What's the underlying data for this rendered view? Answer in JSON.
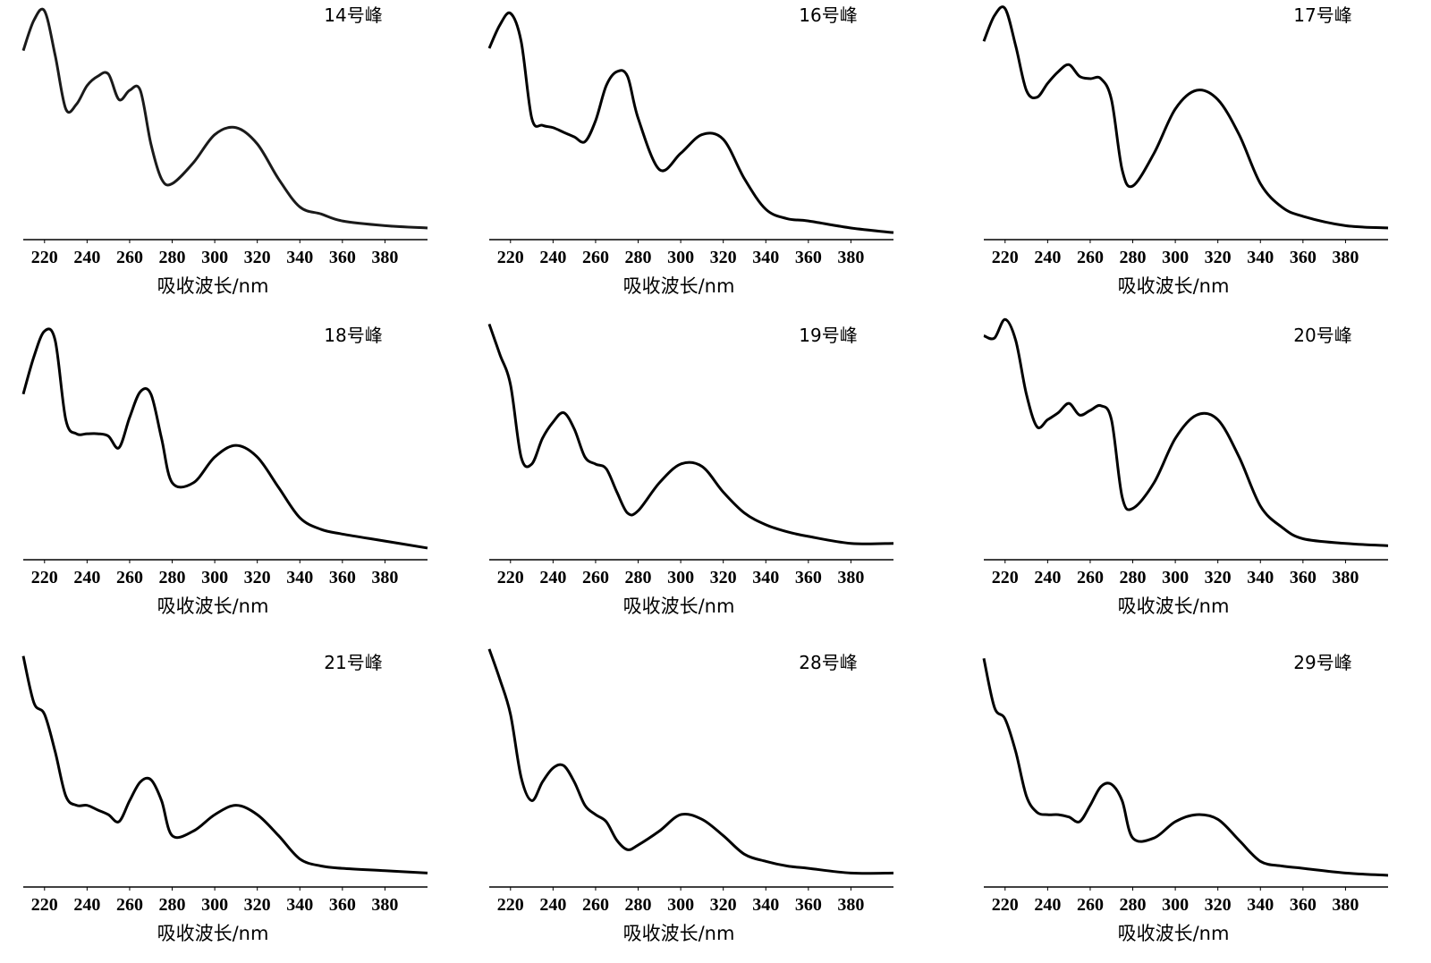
{
  "chart_data": [
    {
      "type": "line",
      "title": "14号峰",
      "xlabel": "吸收波长/nm",
      "color": "#1a1a1a",
      "xlim": [
        210,
        400
      ],
      "ylim": [
        0,
        105
      ],
      "xticks": [
        220,
        240,
        260,
        280,
        300,
        320,
        340,
        360,
        380
      ],
      "x": [
        210,
        215,
        220,
        225,
        230,
        235,
        240,
        245,
        250,
        255,
        260,
        265,
        270,
        275,
        280,
        290,
        300,
        310,
        320,
        330,
        340,
        350,
        360,
        380,
        400
      ],
      "values": [
        81,
        94,
        98,
        79,
        56,
        58,
        66,
        70,
        71,
        60,
        64,
        64,
        41,
        26,
        24,
        33,
        45,
        48,
        41,
        26,
        14,
        11,
        8,
        6,
        5
      ]
    },
    {
      "type": "line",
      "title": "16号峰",
      "xlabel": "吸收波长/nm",
      "color": "#000000",
      "xlim": [
        210,
        400
      ],
      "ylim": [
        0,
        105
      ],
      "xticks": [
        220,
        240,
        260,
        280,
        300,
        320,
        340,
        360,
        380
      ],
      "x": [
        210,
        215,
        220,
        225,
        230,
        235,
        240,
        245,
        250,
        255,
        260,
        265,
        270,
        275,
        280,
        290,
        300,
        310,
        320,
        330,
        340,
        350,
        360,
        380,
        400
      ],
      "values": [
        82,
        92,
        97,
        85,
        52,
        49,
        48,
        46,
        44,
        42,
        51,
        66,
        72,
        70,
        52,
        30,
        37,
        45,
        43,
        26,
        13,
        9,
        8,
        5,
        3
      ]
    },
    {
      "type": "line",
      "title": "17号峰",
      "xlabel": "吸收波长/nm",
      "color": "#000000",
      "xlim": [
        210,
        400
      ],
      "ylim": [
        0,
        105
      ],
      "xticks": [
        220,
        240,
        260,
        280,
        300,
        320,
        340,
        360,
        380
      ],
      "x": [
        210,
        215,
        220,
        225,
        230,
        235,
        240,
        245,
        250,
        255,
        260,
        265,
        270,
        275,
        280,
        290,
        300,
        310,
        320,
        330,
        340,
        350,
        360,
        380,
        400
      ],
      "values": [
        85,
        96,
        99,
        83,
        64,
        61,
        67,
        72,
        75,
        70,
        69,
        69,
        60,
        30,
        23,
        37,
        56,
        64,
        60,
        45,
        24,
        14,
        10,
        6,
        5
      ]
    },
    {
      "type": "line",
      "title": "18号峰",
      "xlabel": "吸收波长/nm",
      "color": "#000000",
      "xlim": [
        210,
        400
      ],
      "ylim": [
        0,
        105
      ],
      "xticks": [
        220,
        240,
        260,
        280,
        300,
        320,
        340,
        360,
        380
      ],
      "x": [
        210,
        215,
        220,
        225,
        230,
        235,
        240,
        245,
        250,
        255,
        260,
        265,
        270,
        275,
        280,
        290,
        300,
        310,
        320,
        330,
        340,
        350,
        360,
        380,
        400
      ],
      "values": [
        71,
        87,
        98,
        94,
        60,
        54,
        54,
        54,
        53,
        48,
        61,
        72,
        71,
        52,
        33,
        33,
        44,
        49,
        44,
        31,
        18,
        13,
        11,
        8,
        5
      ]
    },
    {
      "type": "line",
      "title": "19号峰",
      "xlabel": "吸收波长/nm",
      "color": "#000000",
      "xlim": [
        210,
        400
      ],
      "ylim": [
        0,
        105
      ],
      "xticks": [
        220,
        240,
        260,
        280,
        300,
        320,
        340,
        360,
        380
      ],
      "x": [
        210,
        215,
        220,
        225,
        230,
        235,
        240,
        245,
        250,
        255,
        260,
        265,
        270,
        275,
        280,
        290,
        300,
        310,
        320,
        330,
        340,
        350,
        360,
        380,
        400
      ],
      "values": [
        101,
        88,
        75,
        44,
        41,
        52,
        59,
        63,
        56,
        44,
        41,
        39,
        29,
        20,
        21,
        33,
        41,
        40,
        29,
        20,
        15,
        12,
        10,
        7,
        7
      ]
    },
    {
      "type": "line",
      "title": "20号峰",
      "xlabel": "吸收波长/nm",
      "color": "#000000",
      "xlim": [
        210,
        400
      ],
      "ylim": [
        0,
        105
      ],
      "xticks": [
        220,
        240,
        260,
        280,
        300,
        320,
        340,
        360,
        380
      ],
      "x": [
        210,
        215,
        220,
        225,
        230,
        235,
        240,
        245,
        250,
        255,
        260,
        265,
        270,
        275,
        280,
        290,
        300,
        310,
        320,
        330,
        340,
        350,
        360,
        380,
        400
      ],
      "values": [
        96,
        95,
        103,
        94,
        71,
        57,
        60,
        63,
        67,
        62,
        64,
        66,
        60,
        27,
        22,
        33,
        52,
        62,
        60,
        44,
        23,
        14,
        9,
        7,
        6
      ]
    },
    {
      "type": "line",
      "title": "21号峰",
      "xlabel": "吸收波长/nm",
      "color": "#000000",
      "xlim": [
        210,
        400
      ],
      "ylim": [
        0,
        105
      ],
      "xticks": [
        220,
        240,
        260,
        280,
        300,
        320,
        340,
        360,
        380
      ],
      "x": [
        210,
        215,
        220,
        225,
        230,
        235,
        240,
        245,
        250,
        255,
        260,
        265,
        270,
        275,
        280,
        290,
        300,
        310,
        320,
        330,
        340,
        350,
        360,
        380,
        400
      ],
      "values": [
        99,
        79,
        74,
        58,
        39,
        35,
        35,
        33,
        31,
        28,
        37,
        45,
        46,
        37,
        22,
        24,
        31,
        35,
        31,
        22,
        12,
        9,
        8,
        7,
        6
      ]
    },
    {
      "type": "line",
      "title": "28号峰",
      "xlabel": "吸收波长/nm",
      "color": "#000000",
      "xlim": [
        210,
        400
      ],
      "ylim": [
        0,
        105
      ],
      "xticks": [
        220,
        240,
        260,
        280,
        300,
        320,
        340,
        360,
        380
      ],
      "x": [
        210,
        215,
        220,
        225,
        230,
        235,
        240,
        245,
        250,
        255,
        260,
        265,
        270,
        275,
        280,
        290,
        300,
        310,
        320,
        330,
        340,
        350,
        360,
        380,
        400
      ],
      "values": [
        102,
        89,
        74,
        47,
        37,
        45,
        51,
        52,
        45,
        35,
        31,
        28,
        20,
        16,
        18,
        24,
        31,
        29,
        22,
        14,
        11,
        9,
        8,
        6,
        6
      ]
    },
    {
      "type": "line",
      "title": "29号峰",
      "xlabel": "吸收波长/nm",
      "color": "#000000",
      "xlim": [
        210,
        400
      ],
      "ylim": [
        0,
        105
      ],
      "xticks": [
        220,
        240,
        260,
        280,
        300,
        320,
        340,
        360,
        380
      ],
      "x": [
        210,
        215,
        220,
        225,
        230,
        235,
        240,
        245,
        250,
        255,
        260,
        265,
        270,
        275,
        280,
        290,
        300,
        310,
        320,
        330,
        340,
        350,
        360,
        380,
        400
      ],
      "values": [
        98,
        77,
        72,
        58,
        39,
        32,
        31,
        31,
        30,
        28,
        35,
        43,
        44,
        37,
        21,
        21,
        28,
        31,
        29,
        20,
        11,
        9,
        8,
        6,
        5
      ]
    }
  ]
}
